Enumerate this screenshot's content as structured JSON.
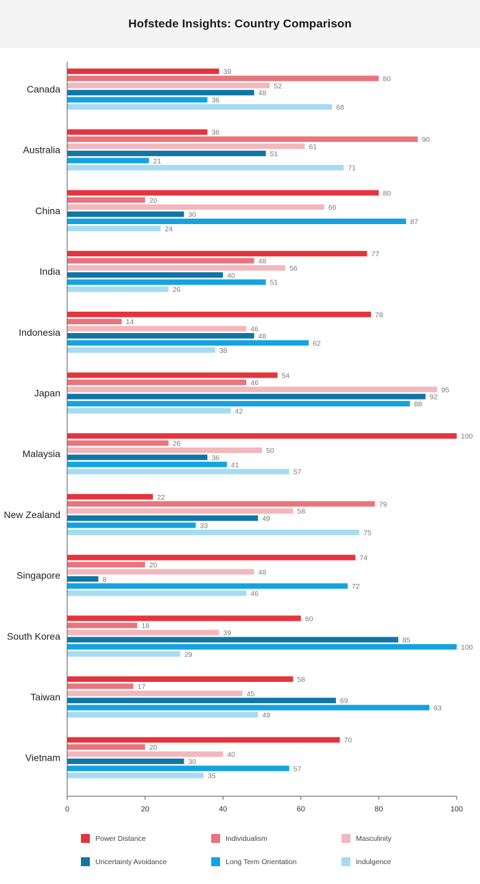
{
  "page": {
    "title": "Hofstede Insights: Country Comparison"
  },
  "chart_data": {
    "type": "bar",
    "orientation": "horizontal",
    "title": "Hofstede Insights: Country Comparison",
    "categories": [
      "Canada",
      "Australia",
      "China",
      "India",
      "Indonesia",
      "Japan",
      "Malaysia",
      "New Zealand",
      "Singapore",
      "South Korea",
      "Taiwan",
      "Vietnam"
    ],
    "series": [
      {
        "name": "Power Distance",
        "color": "#e5343d",
        "values": [
          39,
          36,
          80,
          77,
          78,
          54,
          100,
          22,
          74,
          60,
          58,
          70
        ]
      },
      {
        "name": "Individualism",
        "color": "#e9747d",
        "values": [
          80,
          90,
          20,
          48,
          14,
          46,
          26,
          79,
          20,
          18,
          17,
          20
        ]
      },
      {
        "name": "Masculinity",
        "color": "#f2b8bc",
        "values": [
          52,
          61,
          66,
          56,
          46,
          95,
          50,
          58,
          48,
          39,
          45,
          40
        ]
      },
      {
        "name": "Uncertainty Avoidance",
        "color": "#0f76a6",
        "values": [
          48,
          51,
          30,
          40,
          48,
          92,
          36,
          49,
          8,
          85,
          69,
          30
        ]
      },
      {
        "name": "Long Term Orientation",
        "color": "#14a3e0",
        "values": [
          36,
          21,
          87,
          51,
          62,
          88,
          41,
          33,
          72,
          100,
          93,
          57
        ]
      },
      {
        "name": "Indulgence",
        "color": "#a5dcf2",
        "values": [
          68,
          71,
          24,
          26,
          38,
          42,
          57,
          75,
          46,
          29,
          49,
          35
        ]
      }
    ],
    "xlim": [
      0,
      100
    ],
    "xticks": [
      0,
      20,
      40,
      60,
      80,
      100
    ],
    "grid": false,
    "legend_position": "bottom"
  }
}
